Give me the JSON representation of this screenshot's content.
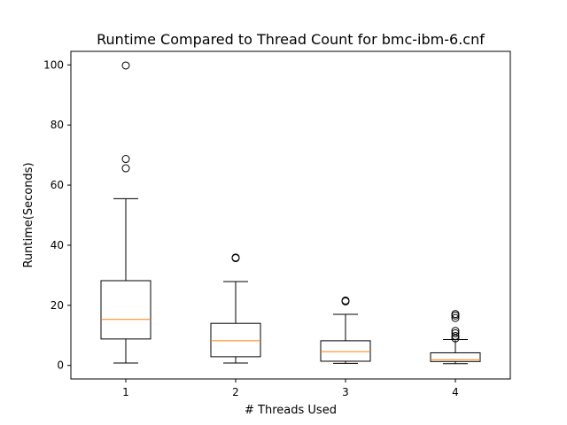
{
  "chart_data": {
    "type": "boxplot",
    "title": "Runtime Compared to Thread Count for bmc-ibm-6.cnf",
    "xlabel": "# Threads Used",
    "ylabel": "Runtime(Seconds)",
    "categories": [
      "1",
      "2",
      "3",
      "4"
    ],
    "ylim": [
      -4.5,
      104.5
    ],
    "yticks": [
      0,
      20,
      40,
      60,
      80,
      100
    ],
    "ytick_labels": [
      "0",
      "20",
      "40",
      "60",
      "80",
      "100"
    ],
    "grid": false,
    "median_color": "#ff7f0e",
    "box_color": "#000000",
    "boxes": [
      {
        "category": "1",
        "whisker_low": 0.8,
        "q1": 8.8,
        "median": 15.3,
        "q3": 28.2,
        "whisker_high": 55.5,
        "outliers": [
          65.6,
          68.7,
          99.8
        ]
      },
      {
        "category": "2",
        "whisker_low": 0.8,
        "q1": 2.9,
        "median": 8.2,
        "q3": 14.0,
        "whisker_high": 27.9,
        "outliers": [
          35.7,
          35.9
        ]
      },
      {
        "category": "3",
        "whisker_low": 0.7,
        "q1": 1.4,
        "median": 4.6,
        "q3": 8.2,
        "whisker_high": 17.0,
        "outliers": [
          21.3,
          21.6
        ]
      },
      {
        "category": "4",
        "whisker_low": 0.6,
        "q1": 1.3,
        "median": 1.9,
        "q3": 4.2,
        "whisker_high": 8.6,
        "outliers": [
          9.0,
          9.8,
          10.7,
          11.5,
          15.8,
          16.6,
          17.1
        ]
      }
    ]
  }
}
